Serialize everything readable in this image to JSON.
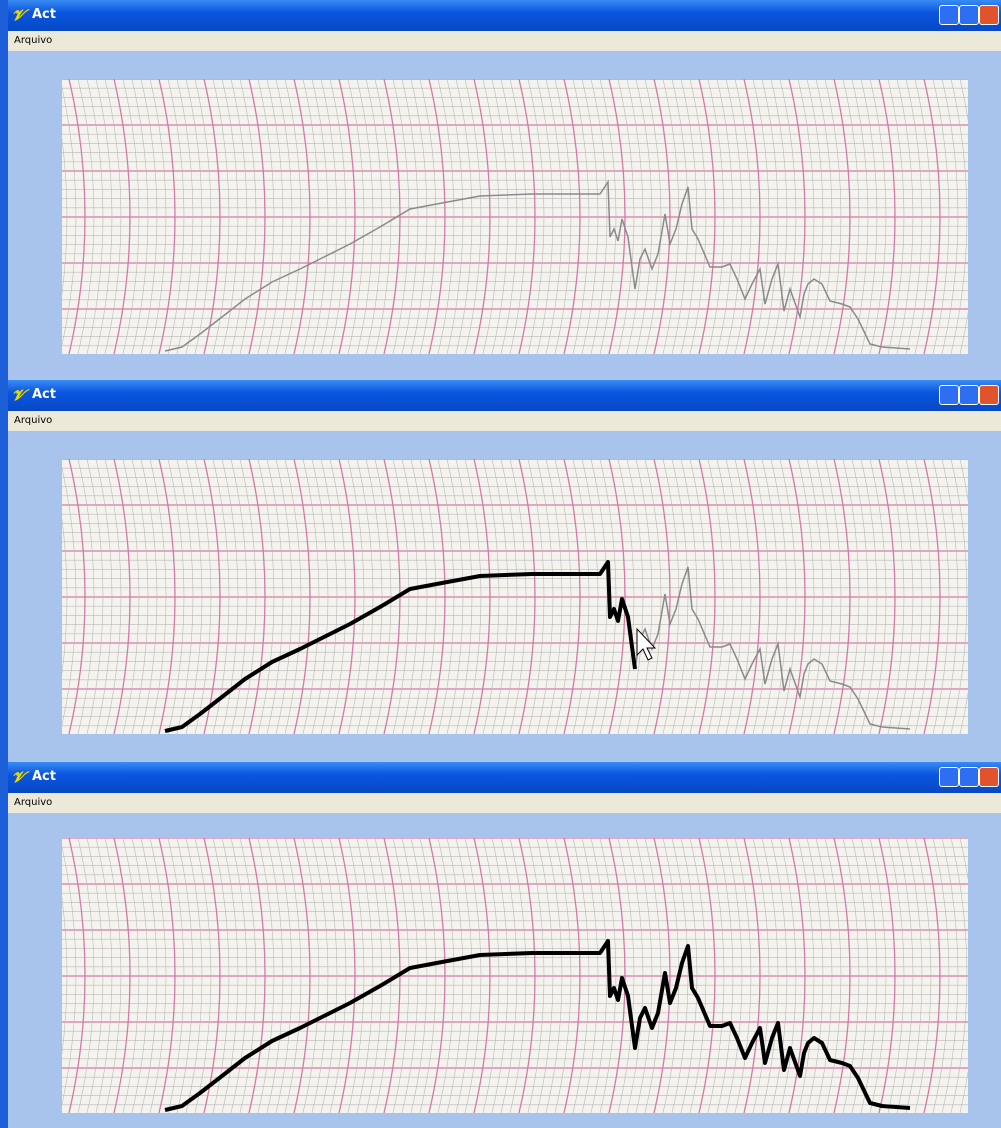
{
  "windows": [
    {
      "title": "Act",
      "menu": "Arquivo"
    },
    {
      "title": "Act",
      "menu": "Arquivo"
    },
    {
      "title": "Act",
      "menu": "Arquivo"
    }
  ]
}
